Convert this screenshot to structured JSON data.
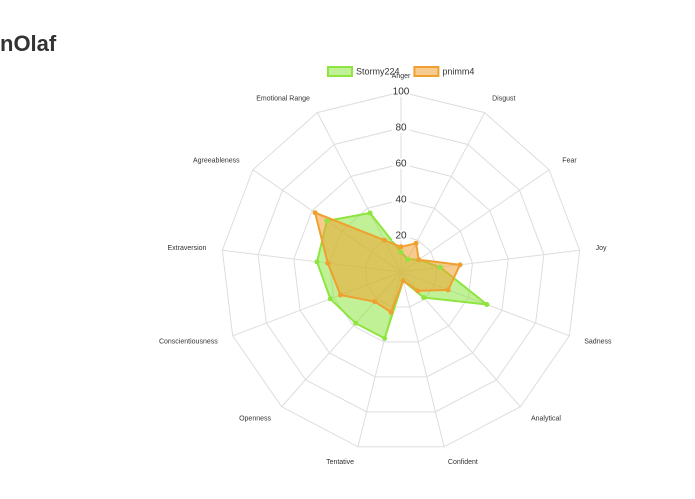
{
  "chart_data": {
    "type": "radar",
    "title": "nOlaf",
    "categories": [
      "Anger",
      "Disgust",
      "Fear",
      "Joy",
      "Sadness",
      "Analytical",
      "Confident",
      "Tentative",
      "Openness",
      "Conscientiousness",
      "Extraversion",
      "Agreeableness",
      "Emotional Range"
    ],
    "series": [
      {
        "name": "Stormy224",
        "color": "#8ee53f",
        "values": [
          11,
          8,
          12,
          22,
          51,
          19,
          5,
          38,
          38,
          42,
          47,
          50,
          37
        ]
      },
      {
        "name": "pnimm4",
        "color": "#f0a030",
        "values": [
          14,
          18,
          12,
          33,
          28,
          14,
          5,
          23,
          22,
          36,
          41,
          58,
          20
        ]
      }
    ],
    "ylim": [
      0,
      100
    ],
    "yticks": [
      20,
      40,
      60,
      80,
      100
    ],
    "grid": true,
    "legend": "top"
  }
}
